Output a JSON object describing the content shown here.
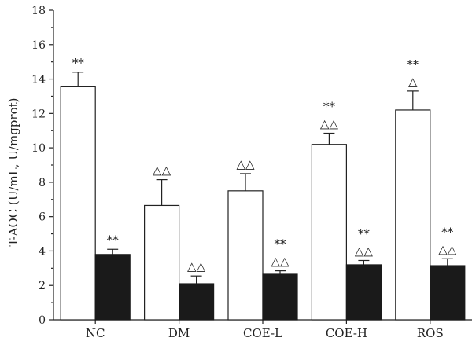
{
  "chart_data": {
    "type": "bar",
    "title": "",
    "xlabel": "",
    "ylabel": "T-AOC (U/mL, U/mgprot)",
    "ylim": [
      0,
      18
    ],
    "yticks": [
      0,
      2,
      4,
      6,
      8,
      10,
      12,
      14,
      16,
      18
    ],
    "grid": false,
    "categories": [
      "NC",
      "DM",
      "COE-L",
      "COE-H",
      "ROS"
    ],
    "series": [
      {
        "fill": "#ffffff",
        "values": [
          13.55,
          6.65,
          7.5,
          10.2,
          12.2
        ],
        "errors": [
          0.85,
          1.5,
          1.0,
          0.65,
          1.1
        ],
        "annotations": [
          [
            "**"
          ],
          [
            "△△"
          ],
          [
            "△△"
          ],
          [
            "**",
            "△△"
          ],
          [
            "**",
            "△"
          ]
        ]
      },
      {
        "fill": "#1a1a1a",
        "values": [
          3.8,
          2.1,
          2.65,
          3.2,
          3.15
        ],
        "errors": [
          0.3,
          0.45,
          0.2,
          0.25,
          0.4
        ],
        "annotations": [
          [
            "**"
          ],
          [
            "△△"
          ],
          [
            "**",
            "△△"
          ],
          [
            "**",
            "△△"
          ],
          [
            "**",
            "△△"
          ]
        ]
      }
    ]
  }
}
